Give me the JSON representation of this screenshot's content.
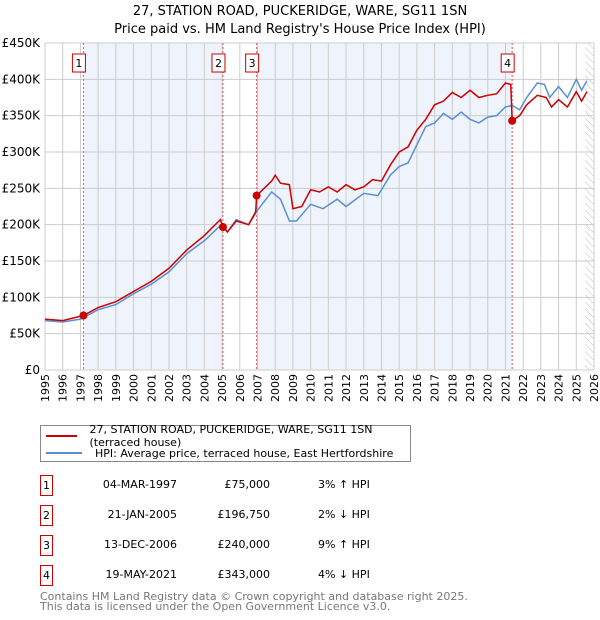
{
  "chart_data": {
    "type": "line",
    "title": "27, STATION ROAD, PUCKERIDGE, WARE, SG11 1SN",
    "subtitle": "Price paid vs. HM Land Registry's House Price Index (HPI)",
    "xlim": [
      1995,
      2026
    ],
    "ylim": [
      0,
      450000
    ],
    "x_ticks": [
      "1995",
      "1996",
      "1997",
      "1998",
      "1999",
      "2000",
      "2001",
      "2002",
      "2003",
      "2004",
      "2005",
      "2006",
      "2007",
      "2008",
      "2009",
      "2010",
      "2011",
      "2012",
      "2013",
      "2014",
      "2015",
      "2016",
      "2017",
      "2018",
      "2019",
      "2020",
      "2021",
      "2022",
      "2023",
      "2024",
      "2025",
      "2026"
    ],
    "y_ticks": [
      {
        "v": 0,
        "label": "£0"
      },
      {
        "v": 50000,
        "label": "£50K"
      },
      {
        "v": 100000,
        "label": "£100K"
      },
      {
        "v": 150000,
        "label": "£150K"
      },
      {
        "v": 200000,
        "label": "£200K"
      },
      {
        "v": 250000,
        "label": "£250K"
      },
      {
        "v": 300000,
        "label": "£300K"
      },
      {
        "v": 350000,
        "label": "£350K"
      },
      {
        "v": 400000,
        "label": "£400K"
      },
      {
        "v": 450000,
        "label": "£450K"
      }
    ],
    "grid": true,
    "series": [
      {
        "name": "27, STATION ROAD, PUCKERIDGE, WARE, SG11 1SN (terraced house)",
        "color": "#cc0000",
        "x": [
          1995,
          1996,
          1997.17,
          1998,
          1999,
          2000,
          2001,
          2002,
          2003,
          2004,
          2004.9,
          2005.05,
          2005.3,
          2005.8,
          2006.5,
          2006.9,
          2006.95,
          2007.8,
          2008,
          2008.3,
          2008.8,
          2009,
          2009.5,
          2010,
          2010.5,
          2011,
          2011.5,
          2012,
          2012.5,
          2013,
          2013.5,
          2014,
          2014.5,
          2015,
          2015.5,
          2016,
          2016.5,
          2017,
          2017.5,
          2018,
          2018.5,
          2019,
          2019.5,
          2020,
          2020.5,
          2021,
          2021.3,
          2021.38,
          2021.8,
          2022.2,
          2022.8,
          2023.3,
          2023.6,
          2024,
          2024.5,
          2025,
          2025.3,
          2025.6
        ],
        "y": [
          70000,
          68000,
          75000,
          86000,
          94000,
          108000,
          122000,
          140000,
          165000,
          185000,
          207000,
          196750,
          190000,
          205000,
          200000,
          218000,
          240000,
          260000,
          268000,
          257000,
          255000,
          222000,
          225000,
          248000,
          245000,
          252000,
          245000,
          255000,
          248000,
          252000,
          262000,
          260000,
          282000,
          300000,
          307000,
          330000,
          345000,
          365000,
          370000,
          382000,
          375000,
          385000,
          375000,
          378000,
          380000,
          395000,
          393000,
          343000,
          350000,
          365000,
          378000,
          375000,
          362000,
          372000,
          362000,
          383000,
          370000,
          383000
        ]
      },
      {
        "name": "HPI: Average price, terraced house, East Hertfordshire",
        "color": "#5b8fd4",
        "x": [
          1995,
          1996,
          1997,
          1998,
          1999,
          2000,
          2001,
          2002,
          2003,
          2004,
          2005,
          2005.3,
          2005.8,
          2006.5,
          2007,
          2007.8,
          2008.3,
          2008.8,
          2009.2,
          2010,
          2010.7,
          2011.5,
          2012,
          2013,
          2013.8,
          2014.5,
          2015,
          2015.5,
          2016,
          2016.5,
          2017,
          2017.5,
          2018,
          2018.5,
          2019,
          2019.5,
          2020,
          2020.5,
          2021,
          2021.4,
          2021.8,
          2022.2,
          2022.8,
          2023.2,
          2023.5,
          2024,
          2024.5,
          2025,
          2025.3,
          2025.6
        ],
        "y": [
          68000,
          66000,
          70000,
          83000,
          90000,
          105000,
          118000,
          135000,
          160000,
          178000,
          201000,
          190000,
          207000,
          200000,
          220000,
          245000,
          235000,
          205000,
          205000,
          228000,
          222000,
          235000,
          225000,
          243000,
          240000,
          268000,
          280000,
          285000,
          310000,
          335000,
          340000,
          353000,
          345000,
          355000,
          345000,
          340000,
          348000,
          350000,
          362000,
          364000,
          358000,
          375000,
          395000,
          393000,
          375000,
          390000,
          375000,
          400000,
          385000,
          398000
        ]
      }
    ],
    "sales": [
      {
        "n": "1",
        "x": 1997.17,
        "y": 75000,
        "date": "04-MAR-1997",
        "price": "£75,000",
        "hpi": "3% ↑ HPI"
      },
      {
        "n": "2",
        "x": 2005.05,
        "y": 196750,
        "date": "21-JAN-2005",
        "price": "£196,750",
        "hpi": "2% ↓ HPI"
      },
      {
        "n": "3",
        "x": 2006.95,
        "y": 240000,
        "date": "13-DEC-2006",
        "price": "£240,000",
        "hpi": "9% ↑ HPI"
      },
      {
        "n": "4",
        "x": 2021.38,
        "y": 343000,
        "date": "19-MAY-2021",
        "price": "£343,000",
        "hpi": "4% ↓ HPI"
      }
    ],
    "shaded_ranges": [
      [
        1997.17,
        2005.05
      ],
      [
        2006.95,
        2021.38
      ]
    ],
    "forecast_from": 2025.5,
    "legend_placement": "below"
  },
  "footer": {
    "line1": "Contains HM Land Registry data © Crown copyright and database right 2025.",
    "line2": "This data is licensed under the Open Government Licence v3.0."
  }
}
